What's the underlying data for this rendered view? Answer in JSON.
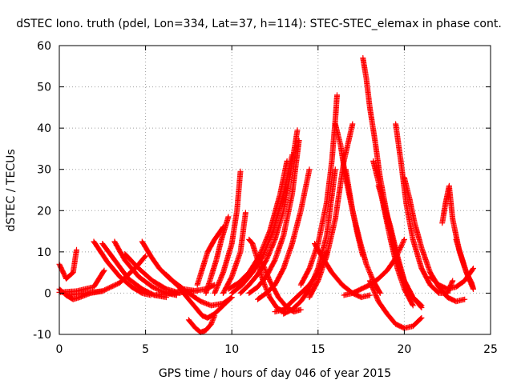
{
  "chart_data": {
    "type": "scatter",
    "title": "dSTEC Iono. truth (pdel, Lon=334, Lat=37, h=114): STEC-STEC_elemax in phase cont.",
    "xlabel": "GPS time / hours of day 046 of year 2015",
    "ylabel": "dSTEC  / TECUs",
    "xlim": [
      0,
      25
    ],
    "ylim": [
      -10,
      60
    ],
    "xticks": [
      "0",
      "5",
      "10",
      "15",
      "20",
      "25"
    ],
    "yticks": [
      "-10",
      "0",
      "10",
      "20",
      "30",
      "40",
      "50",
      "60"
    ],
    "grid": true,
    "marker": "+",
    "color": "#ff0000",
    "arcs": [
      {
        "x": [
          0.0,
          0.4,
          0.8,
          1.0
        ],
        "y": [
          7.0,
          3.5,
          5.0,
          10.5
        ]
      },
      {
        "x": [
          0.0,
          0.4,
          0.8,
          1.2,
          1.8,
          2.5
        ],
        "y": [
          1.0,
          -0.5,
          -1.5,
          -1.0,
          0.0,
          0.5
        ]
      },
      {
        "x": [
          0.0,
          1.0,
          2.0,
          2.6
        ],
        "y": [
          0.2,
          0.5,
          1.5,
          5.5
        ]
      },
      {
        "x": [
          2.0,
          2.8,
          3.5,
          4.2,
          4.8,
          5.3
        ],
        "y": [
          12.5,
          7.5,
          4.0,
          1.5,
          0.0,
          -0.5
        ]
      },
      {
        "x": [
          2.5,
          3.3,
          4.0,
          4.8,
          5.5,
          6.2
        ],
        "y": [
          12.0,
          7.5,
          3.5,
          1.0,
          -0.5,
          -1.0
        ]
      },
      {
        "x": [
          3.2,
          3.8,
          4.6,
          5.4,
          6.2,
          6.8
        ],
        "y": [
          12.5,
          8.0,
          4.0,
          1.5,
          0.0,
          -0.5
        ]
      },
      {
        "x": [
          3.8,
          4.6,
          5.4,
          6.2,
          7.0
        ],
        "y": [
          9.5,
          6.0,
          3.0,
          1.0,
          0.0
        ]
      },
      {
        "x": [
          4.8,
          5.3,
          5.8,
          6.4,
          7.2,
          8.0
        ],
        "y": [
          12.5,
          9.0,
          6.0,
          3.5,
          1.0,
          0.5
        ]
      },
      {
        "x": [
          0.5,
          1.5,
          2.5,
          3.5,
          4.5,
          5.0
        ],
        "y": [
          -0.5,
          0.0,
          0.5,
          2.5,
          6.5,
          9.0
        ]
      },
      {
        "x": [
          5.5,
          6.5,
          7.5,
          8.5,
          9.0
        ],
        "y": [
          -0.5,
          0.0,
          0.3,
          1.0,
          2.0
        ]
      },
      {
        "x": [
          6.2,
          6.8,
          7.5,
          8.2,
          8.8,
          9.5,
          10.0
        ],
        "y": [
          4.5,
          2.0,
          0.0,
          -2.0,
          -3.0,
          -2.5,
          -1.0
        ]
      },
      {
        "x": [
          7.5,
          7.9,
          8.2,
          8.5,
          8.8,
          9.0
        ],
        "y": [
          -6.5,
          -8.5,
          -9.5,
          -9.0,
          -7.5,
          -5.5
        ]
      },
      {
        "x": [
          7.0,
          7.5,
          8.0,
          8.3,
          8.6,
          9.0,
          9.5,
          10.0
        ],
        "y": [
          1.0,
          -1.5,
          -4.0,
          -5.5,
          -6.0,
          -5.0,
          -3.0,
          -1.0
        ]
      },
      {
        "x": [
          8.0,
          8.3,
          8.6,
          9.0,
          9.5
        ],
        "y": [
          2.0,
          6.0,
          10.0,
          13.0,
          16.0
        ]
      },
      {
        "x": [
          8.5,
          8.8,
          9.1,
          9.4,
          9.8
        ],
        "y": [
          0.0,
          4.0,
          8.0,
          13.0,
          18.5
        ]
      },
      {
        "x": [
          9.0,
          9.5,
          10.0,
          10.3,
          10.5
        ],
        "y": [
          0.0,
          5.0,
          12.0,
          20.0,
          29.5
        ]
      },
      {
        "x": [
          9.5,
          10.0,
          10.5,
          10.8
        ],
        "y": [
          0.0,
          4.0,
          10.0,
          19.5
        ]
      },
      {
        "x": [
          9.8,
          10.4,
          11.0,
          11.6,
          12.2,
          12.8,
          13.2
        ],
        "y": [
          1.0,
          2.5,
          5.0,
          9.0,
          15.0,
          24.0,
          32.0
        ]
      },
      {
        "x": [
          10.0,
          10.6,
          11.2,
          11.8,
          12.4,
          13.0,
          13.5
        ],
        "y": [
          0.0,
          2.0,
          5.0,
          9.0,
          15.0,
          24.0,
          33.5
        ]
      },
      {
        "x": [
          10.5,
          11.0,
          11.5,
          12.0,
          12.5,
          13.0,
          13.4,
          13.8
        ],
        "y": [
          0.0,
          2.0,
          4.5,
          8.0,
          13.0,
          20.0,
          29.0,
          39.5
        ]
      },
      {
        "x": [
          11.0,
          11.5,
          12.0,
          12.5,
          13.0,
          13.5,
          13.9
        ],
        "y": [
          0.0,
          1.5,
          4.0,
          8.0,
          14.0,
          24.0,
          37.0
        ]
      },
      {
        "x": [
          11.5,
          12.0,
          12.5,
          13.0,
          13.5,
          14.0,
          14.5
        ],
        "y": [
          -1.5,
          0.0,
          2.0,
          6.0,
          12.0,
          20.0,
          30.0
        ]
      },
      {
        "x": [
          11.0,
          11.2,
          11.5,
          11.8,
          12.2,
          12.6,
          13.0
        ],
        "y": [
          13.0,
          12.0,
          8.0,
          3.0,
          -1.0,
          -3.5,
          -4.5
        ]
      },
      {
        "x": [
          11.5,
          11.8,
          12.2,
          12.7,
          13.2,
          13.6,
          14.0
        ],
        "y": [
          8.5,
          7.0,
          3.0,
          -1.0,
          -3.5,
          -4.5,
          -4.0
        ]
      },
      {
        "x": [
          12.5,
          13.0,
          13.5,
          14.0,
          14.5,
          15.0,
          15.5
        ],
        "y": [
          -4.5,
          -4.0,
          -2.0,
          0.0,
          2.0,
          5.0,
          10.0
        ]
      },
      {
        "x": [
          13.0,
          13.5,
          14.0,
          14.5,
          15.0,
          15.5,
          16.0
        ],
        "y": [
          -5.0,
          -4.0,
          -2.0,
          1.0,
          6.0,
          14.0,
          30.0
        ]
      },
      {
        "x": [
          14.5,
          15.0,
          15.5,
          16.0,
          16.5,
          17.0
        ],
        "y": [
          -1.0,
          3.0,
          9.0,
          18.0,
          32.0,
          41.0
        ]
      },
      {
        "x": [
          14.0,
          14.5,
          15.0,
          15.5,
          15.8,
          16.0,
          16.1
        ],
        "y": [
          2.0,
          6.0,
          12.0,
          22.0,
          32.0,
          42.0,
          48.0
        ]
      },
      {
        "x": [
          14.8,
          15.2,
          15.8,
          16.4,
          17.0,
          17.5,
          18.0
        ],
        "y": [
          12.0,
          9.0,
          5.0,
          2.0,
          0.0,
          -1.0,
          -0.5
        ]
      },
      {
        "x": [
          16.0,
          16.3,
          16.6,
          17.0,
          17.4,
          17.8,
          18.2,
          18.6
        ],
        "y": [
          41.0,
          36.0,
          28.0,
          20.0,
          13.0,
          7.0,
          3.0,
          0.0
        ]
      },
      {
        "x": [
          16.6,
          17.0,
          17.3,
          17.6
        ],
        "y": [
          30.0,
          20.0,
          14.0,
          9.0
        ]
      },
      {
        "x": [
          17.6,
          17.8,
          18.0,
          18.3,
          18.6,
          19.0,
          19.4,
          19.8,
          20.2
        ],
        "y": [
          57.0,
          52.0,
          45.0,
          37.0,
          28.0,
          19.0,
          11.0,
          5.0,
          1.0
        ]
      },
      {
        "x": [
          18.2,
          18.5,
          18.8,
          19.2,
          19.6,
          20.0,
          20.5
        ],
        "y": [
          32.0,
          27.0,
          21.0,
          13.0,
          6.0,
          1.0,
          -3.0
        ]
      },
      {
        "x": [
          18.5,
          18.8,
          19.2,
          19.6,
          20.0,
          20.5,
          21.0
        ],
        "y": [
          26.0,
          22.0,
          16.0,
          9.0,
          3.0,
          -1.0,
          -3.5
        ]
      },
      {
        "x": [
          18.8,
          19.2,
          19.6,
          20.0,
          20.5,
          21.0
        ],
        "y": [
          21.0,
          15.0,
          8.0,
          3.0,
          -1.0,
          -3.0
        ]
      },
      {
        "x": [
          19.5,
          19.8,
          20.1,
          20.5,
          21.0,
          21.5,
          22.0,
          22.5,
          22.8
        ],
        "y": [
          41.0,
          32.0,
          22.0,
          13.0,
          6.0,
          2.0,
          0.0,
          0.0,
          3.0
        ]
      },
      {
        "x": [
          20.0,
          20.3,
          20.6,
          21.0,
          21.5,
          22.0,
          22.5,
          23.0,
          23.5
        ],
        "y": [
          28.0,
          23.0,
          17.0,
          11.0,
          5.0,
          1.5,
          -1.0,
          -2.0,
          -1.5
        ]
      },
      {
        "x": [
          18.0,
          18.5,
          19.0,
          19.5,
          20.0,
          20.5,
          21.0
        ],
        "y": [
          3.0,
          -2.0,
          -5.0,
          -7.5,
          -8.5,
          -8.0,
          -6.0
        ]
      },
      {
        "x": [
          16.5,
          17.0,
          17.5,
          18.0,
          18.5,
          19.0,
          19.5,
          20.0
        ],
        "y": [
          -0.5,
          0.0,
          1.0,
          2.0,
          3.5,
          5.5,
          8.5,
          13.0
        ]
      },
      {
        "x": [
          22.2,
          22.4,
          22.6,
          22.8,
          23.2,
          23.6,
          24.0
        ],
        "y": [
          17.0,
          22.0,
          26.0,
          18.0,
          10.0,
          5.0,
          1.0
        ]
      },
      {
        "x": [
          23.0,
          23.3,
          23.6,
          23.9,
          24.0
        ],
        "y": [
          13.0,
          9.0,
          5.0,
          2.5,
          1.0
        ]
      },
      {
        "x": [
          21.5,
          22.0,
          22.5,
          23.0,
          23.5,
          24.0
        ],
        "y": [
          4.0,
          2.0,
          1.0,
          1.5,
          3.0,
          6.0
        ]
      }
    ]
  }
}
